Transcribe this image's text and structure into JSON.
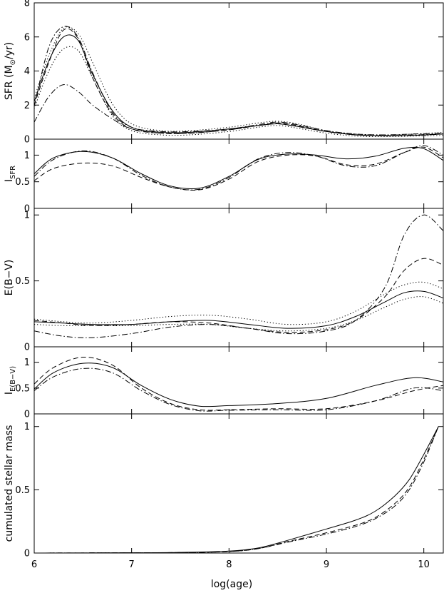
{
  "chart_data": [
    {
      "type": "line",
      "panel": "sfr",
      "ylabel": "SFR (M",
      "ylabel_suffix": "/yr)",
      "ylabel_has_sun_symbol": true,
      "xlim": [
        6,
        10.2
      ],
      "ylim": [
        0,
        8
      ],
      "yticks": [
        0,
        2,
        4,
        6,
        8
      ],
      "series": [
        {
          "style": "solid",
          "x": [
            6.0,
            6.15,
            6.3,
            6.45,
            6.6,
            6.8,
            7.0,
            7.3,
            7.6,
            8.0,
            8.3,
            8.5,
            8.7,
            9.0,
            9.3,
            9.6,
            9.9,
            10.2
          ],
          "y": [
            2.2,
            4.6,
            6.0,
            5.8,
            3.8,
            1.7,
            0.7,
            0.4,
            0.4,
            0.6,
            0.8,
            0.9,
            0.75,
            0.45,
            0.25,
            0.2,
            0.22,
            0.3
          ]
        },
        {
          "style": "dashed",
          "x": [
            6.0,
            6.15,
            6.3,
            6.45,
            6.6,
            6.8,
            7.0,
            7.3,
            7.6,
            8.0,
            8.3,
            8.5,
            8.7,
            9.0,
            9.3,
            9.6,
            9.9,
            10.2
          ],
          "y": [
            2.0,
            4.5,
            6.4,
            5.9,
            3.6,
            1.5,
            0.6,
            0.35,
            0.35,
            0.55,
            0.8,
            0.95,
            0.8,
            0.45,
            0.25,
            0.2,
            0.22,
            0.3
          ]
        },
        {
          "style": "dotted",
          "x": [
            6.0,
            6.15,
            6.3,
            6.45,
            6.6,
            6.8,
            7.0,
            7.3,
            7.6,
            8.0,
            8.3,
            8.5,
            8.7,
            9.0,
            9.3,
            9.6,
            9.9,
            10.2
          ],
          "y": [
            2.4,
            4.9,
            6.5,
            6.2,
            4.5,
            2.1,
            0.9,
            0.5,
            0.5,
            0.7,
            0.95,
            1.05,
            0.9,
            0.5,
            0.3,
            0.25,
            0.3,
            0.4
          ]
        },
        {
          "style": "dotted",
          "x": [
            6.0,
            6.15,
            6.3,
            6.45,
            6.6,
            6.8,
            7.0,
            7.3,
            7.6,
            8.0,
            8.3,
            8.5,
            8.7,
            9.0,
            9.3,
            9.6,
            9.9,
            10.2
          ],
          "y": [
            1.8,
            4.0,
            5.3,
            5.2,
            3.6,
            1.4,
            0.5,
            0.25,
            0.25,
            0.45,
            0.7,
            0.8,
            0.65,
            0.35,
            0.18,
            0.15,
            0.18,
            0.22
          ]
        },
        {
          "style": "dashdot",
          "x": [
            6.0,
            6.15,
            6.3,
            6.45,
            6.6,
            6.8,
            7.0,
            7.3,
            7.6,
            8.0,
            8.3,
            8.5,
            8.7,
            9.0,
            9.3,
            9.6,
            9.9,
            10.2
          ],
          "y": [
            1.9,
            5.4,
            6.6,
            6.0,
            3.9,
            1.6,
            0.7,
            0.45,
            0.45,
            0.6,
            0.85,
            1.0,
            0.85,
            0.5,
            0.3,
            0.25,
            0.3,
            0.35
          ]
        },
        {
          "style": "dashdot",
          "x": [
            6.0,
            6.15,
            6.3,
            6.45,
            6.6,
            6.8,
            7.0,
            7.3,
            7.6,
            8.0,
            8.3,
            8.5,
            8.7,
            9.0,
            9.3,
            9.6,
            9.9,
            10.2
          ],
          "y": [
            1.0,
            2.5,
            3.2,
            2.8,
            2.0,
            1.2,
            0.6,
            0.35,
            0.35,
            0.55,
            0.8,
            0.9,
            0.75,
            0.45,
            0.25,
            0.2,
            0.25,
            0.3
          ]
        }
      ]
    },
    {
      "type": "line",
      "panel": "isfr",
      "ylabel": "I",
      "ylabel_sub": "SFR",
      "xlim": [
        6,
        10.2
      ],
      "ylim": [
        0,
        1.3
      ],
      "yticks": [
        0,
        0.5,
        1
      ],
      "yticklabels": [
        "0",
        "0.5",
        "1"
      ],
      "series": [
        {
          "style": "solid",
          "x": [
            6.0,
            6.2,
            6.5,
            6.8,
            7.1,
            7.4,
            7.7,
            8.0,
            8.3,
            8.6,
            8.9,
            9.2,
            9.5,
            9.8,
            10.0,
            10.2
          ],
          "y": [
            0.65,
            0.95,
            1.07,
            0.95,
            0.65,
            0.42,
            0.38,
            0.6,
            0.92,
            1.02,
            1.0,
            0.93,
            0.98,
            1.13,
            1.12,
            0.9
          ]
        },
        {
          "style": "dashed",
          "x": [
            6.0,
            6.2,
            6.5,
            6.8,
            7.1,
            7.4,
            7.7,
            8.0,
            8.3,
            8.6,
            8.9,
            9.2,
            9.5,
            9.8,
            10.0,
            10.2
          ],
          "y": [
            0.52,
            0.75,
            0.85,
            0.8,
            0.58,
            0.4,
            0.35,
            0.55,
            0.88,
            1.0,
            0.98,
            0.82,
            0.83,
            1.05,
            1.15,
            0.95
          ]
        },
        {
          "style": "dashdot",
          "x": [
            6.0,
            6.2,
            6.5,
            6.8,
            7.1,
            7.4,
            7.7,
            8.0,
            8.3,
            8.6,
            8.9,
            9.2,
            9.5,
            9.8,
            10.0,
            10.2
          ],
          "y": [
            0.6,
            0.92,
            1.08,
            0.95,
            0.62,
            0.4,
            0.36,
            0.58,
            0.93,
            1.05,
            0.98,
            0.8,
            0.8,
            1.05,
            1.18,
            1.0
          ]
        }
      ]
    },
    {
      "type": "line",
      "panel": "ebv",
      "ylabel": "E(B−V)",
      "xlim": [
        6,
        10.2
      ],
      "ylim": [
        0,
        1.05
      ],
      "yticks": [
        0,
        0.5,
        1
      ],
      "yticklabels": [
        "0",
        "0.5",
        "1"
      ],
      "series": [
        {
          "style": "solid",
          "x": [
            6.0,
            6.3,
            6.6,
            7.0,
            7.4,
            7.8,
            8.2,
            8.6,
            9.0,
            9.3,
            9.6,
            9.8,
            10.0,
            10.2
          ],
          "y": [
            0.19,
            0.18,
            0.17,
            0.17,
            0.19,
            0.2,
            0.17,
            0.14,
            0.16,
            0.23,
            0.34,
            0.41,
            0.42,
            0.37
          ]
        },
        {
          "style": "dashed",
          "x": [
            6.0,
            6.3,
            6.6,
            7.0,
            7.4,
            7.8,
            8.2,
            8.6,
            9.0,
            9.3,
            9.6,
            9.8,
            10.0,
            10.2
          ],
          "y": [
            0.2,
            0.18,
            0.16,
            0.17,
            0.19,
            0.18,
            0.14,
            0.11,
            0.13,
            0.2,
            0.38,
            0.58,
            0.67,
            0.62
          ]
        },
        {
          "style": "dotted",
          "x": [
            6.0,
            6.3,
            6.6,
            7.0,
            7.4,
            7.8,
            8.2,
            8.6,
            9.0,
            9.3,
            9.6,
            9.8,
            10.0,
            10.2
          ],
          "y": [
            0.21,
            0.19,
            0.18,
            0.2,
            0.23,
            0.24,
            0.21,
            0.17,
            0.19,
            0.27,
            0.4,
            0.47,
            0.49,
            0.44
          ]
        },
        {
          "style": "dotted",
          "x": [
            6.0,
            6.3,
            6.6,
            7.0,
            7.4,
            7.8,
            8.2,
            8.6,
            9.0,
            9.3,
            9.6,
            9.8,
            10.0,
            10.2
          ],
          "y": [
            0.17,
            0.16,
            0.16,
            0.16,
            0.17,
            0.17,
            0.14,
            0.12,
            0.14,
            0.2,
            0.3,
            0.36,
            0.38,
            0.33
          ]
        },
        {
          "style": "dashdot",
          "x": [
            6.0,
            6.3,
            6.6,
            7.0,
            7.4,
            7.8,
            8.2,
            8.6,
            9.0,
            9.3,
            9.6,
            9.8,
            10.0,
            10.2
          ],
          "y": [
            0.12,
            0.08,
            0.07,
            0.1,
            0.15,
            0.17,
            0.14,
            0.1,
            0.12,
            0.2,
            0.45,
            0.85,
            1.0,
            0.88
          ]
        }
      ]
    },
    {
      "type": "line",
      "panel": "iebv",
      "ylabel": "I",
      "ylabel_sub": "E(B−V)",
      "xlim": [
        6,
        10.2
      ],
      "ylim": [
        0,
        1.3
      ],
      "yticks": [
        0,
        0.5,
        1
      ],
      "yticklabels": [
        "0",
        "0.5",
        "1"
      ],
      "series": [
        {
          "style": "solid",
          "x": [
            6.0,
            6.2,
            6.5,
            6.8,
            7.1,
            7.4,
            7.7,
            8.0,
            8.5,
            9.0,
            9.5,
            9.9,
            10.2
          ],
          "y": [
            0.48,
            0.8,
            0.98,
            0.9,
            0.55,
            0.28,
            0.15,
            0.16,
            0.2,
            0.3,
            0.55,
            0.7,
            0.62
          ]
        },
        {
          "style": "dashed",
          "x": [
            6.0,
            6.2,
            6.5,
            6.8,
            7.1,
            7.4,
            7.7,
            8.0,
            8.5,
            9.0,
            9.5,
            9.9,
            10.2
          ],
          "y": [
            0.58,
            0.9,
            1.1,
            0.95,
            0.5,
            0.2,
            0.08,
            0.08,
            0.1,
            0.1,
            0.25,
            0.45,
            0.55
          ]
        },
        {
          "style": "dashdot",
          "x": [
            6.0,
            6.2,
            6.5,
            6.8,
            7.1,
            7.4,
            7.7,
            8.0,
            8.5,
            9.0,
            9.5,
            9.9,
            10.2
          ],
          "y": [
            0.45,
            0.72,
            0.88,
            0.8,
            0.45,
            0.18,
            0.06,
            0.07,
            0.08,
            0.08,
            0.25,
            0.5,
            0.45
          ]
        }
      ]
    },
    {
      "type": "line",
      "panel": "mass",
      "ylabel": "cumulated stellar mass",
      "xlabel": "log(age)",
      "xlim": [
        6,
        10.2
      ],
      "ylim": [
        0,
        1.1
      ],
      "xticks": [
        6,
        7,
        8,
        9,
        10
      ],
      "xticklabels": [
        "6",
        "7",
        "8",
        "9",
        "10"
      ],
      "yticks": [
        0,
        0.5,
        1
      ],
      "yticklabels": [
        "0",
        "0.5",
        "1"
      ],
      "series": [
        {
          "style": "solid",
          "x": [
            6.0,
            7.0,
            7.5,
            8.0,
            8.3,
            8.6,
            9.0,
            9.3,
            9.5,
            9.7,
            9.85,
            10.0,
            10.15
          ],
          "y": [
            0,
            0.002,
            0.005,
            0.015,
            0.04,
            0.1,
            0.19,
            0.26,
            0.33,
            0.45,
            0.58,
            0.78,
            1.0
          ]
        },
        {
          "style": "dashed",
          "x": [
            6.0,
            7.0,
            7.5,
            8.0,
            8.3,
            8.6,
            9.0,
            9.3,
            9.5,
            9.7,
            9.85,
            10.0,
            10.15
          ],
          "y": [
            0,
            0.002,
            0.004,
            0.012,
            0.035,
            0.09,
            0.16,
            0.22,
            0.28,
            0.39,
            0.52,
            0.74,
            1.0
          ]
        },
        {
          "style": "dashdot",
          "x": [
            6.0,
            7.0,
            7.5,
            8.0,
            8.3,
            8.6,
            9.0,
            9.3,
            9.5,
            9.7,
            9.85,
            10.0,
            10.15
          ],
          "y": [
            0,
            0.002,
            0.004,
            0.012,
            0.035,
            0.085,
            0.15,
            0.21,
            0.27,
            0.37,
            0.5,
            0.72,
            1.0
          ]
        }
      ]
    }
  ]
}
